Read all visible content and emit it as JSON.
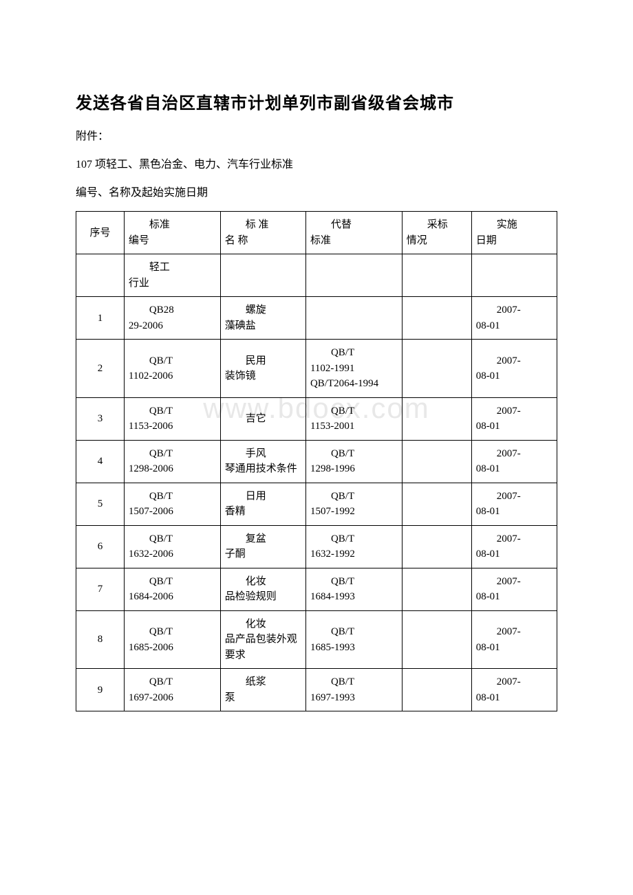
{
  "watermark": "www.bdocx.com",
  "title": "发送各省自治区直辖市计划单列市副省级省会城市",
  "line1": "附件：",
  "line2": "107 项轻工、黑色冶金、电力、汽车行业标准",
  "line3": "编号、名称及起始实施日期",
  "table": {
    "columns": [
      {
        "l1": "序号",
        "l2": ""
      },
      {
        "l1": "标准",
        "l2": "编号"
      },
      {
        "l1": "标 准",
        "l2": "名 称"
      },
      {
        "l1": "代替",
        "l2": "标准"
      },
      {
        "l1": "采标",
        "l2": "情况"
      },
      {
        "l1": "实施",
        "l2": "日期"
      }
    ],
    "section_row": {
      "l1": "轻工",
      "l2": "行业"
    },
    "rows": [
      {
        "seq": "1",
        "code_l1": "QB28",
        "code_l2": "29-2006",
        "name_l1": "螺旋",
        "name_l2": "藻碘盐",
        "replace_l1": "",
        "replace_l2": "",
        "caibiao": "",
        "date_l1": "2007-",
        "date_l2": "08-01"
      },
      {
        "seq": "2",
        "code_l1": "QB/T",
        "code_l2": "1102-2006",
        "name_l1": "民用",
        "name_l2": "装饰镜",
        "replace_l1": "QB/T",
        "replace_l2": "1102-1991 QB/T2064-1994",
        "caibiao": "",
        "date_l1": "2007-",
        "date_l2": "08-01"
      },
      {
        "seq": "3",
        "code_l1": "QB/T",
        "code_l2": "1153-2006",
        "name_l1": "吉它",
        "name_l2": "",
        "replace_l1": "QB/T",
        "replace_l2": "1153-2001",
        "caibiao": "",
        "date_l1": "2007-",
        "date_l2": "08-01"
      },
      {
        "seq": "4",
        "code_l1": "QB/T",
        "code_l2": "1298-2006",
        "name_l1": "手风",
        "name_l2": "琴通用技术条件",
        "replace_l1": "QB/T",
        "replace_l2": "1298-1996",
        "caibiao": "",
        "date_l1": "2007-",
        "date_l2": "08-01"
      },
      {
        "seq": "5",
        "code_l1": "QB/T",
        "code_l2": "1507-2006",
        "name_l1": "日用",
        "name_l2": "香精",
        "replace_l1": "QB/T",
        "replace_l2": "1507-1992",
        "caibiao": "",
        "date_l1": "2007-",
        "date_l2": "08-01"
      },
      {
        "seq": "6",
        "code_l1": "QB/T",
        "code_l2": "1632-2006",
        "name_l1": "复盆",
        "name_l2": "子酮",
        "replace_l1": "QB/T",
        "replace_l2": "1632-1992",
        "caibiao": "",
        "date_l1": "2007-",
        "date_l2": "08-01"
      },
      {
        "seq": "7",
        "code_l1": "QB/T",
        "code_l2": "1684-2006",
        "name_l1": "化妆",
        "name_l2": "品检验规则",
        "replace_l1": "QB/T",
        "replace_l2": "1684-1993",
        "caibiao": "",
        "date_l1": "2007-",
        "date_l2": "08-01"
      },
      {
        "seq": "8",
        "code_l1": "QB/T",
        "code_l2": "1685-2006",
        "name_l1": "化妆",
        "name_l2": "品产品包装外观要求",
        "replace_l1": "QB/T",
        "replace_l2": "1685-1993",
        "caibiao": "",
        "date_l1": "2007-",
        "date_l2": "08-01"
      },
      {
        "seq": "9",
        "code_l1": "QB/T",
        "code_l2": "1697-2006",
        "name_l1": "纸浆",
        "name_l2": "泵",
        "replace_l1": "QB/T",
        "replace_l2": "1697-1993",
        "caibiao": "",
        "date_l1": "2007-",
        "date_l2": "08-01"
      }
    ]
  }
}
